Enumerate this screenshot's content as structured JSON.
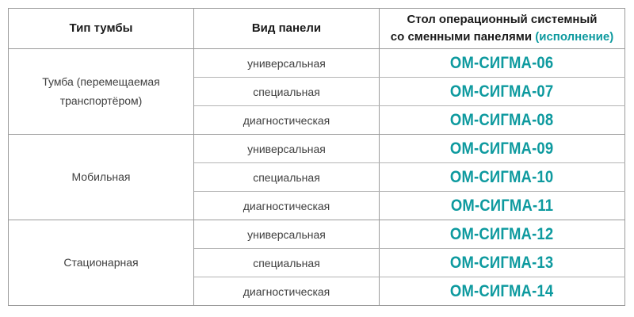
{
  "colors": {
    "accent_teal": "#0e9a9f",
    "grid_border": "#9b9b9b",
    "inner_row_border": "#b4b4b4",
    "header_text": "#1b1b1b",
    "body_text": "#404040"
  },
  "table": {
    "headers": {
      "cabinet_type": "Тип тумбы",
      "panel_type": "Вид панели",
      "model": {
        "line1": "Стол операционный системный",
        "line2": "со сменными панелями",
        "accent": "(исполнение)"
      }
    },
    "groups": [
      {
        "type": "Тумба (перемещаемая транспортёром)",
        "rows": [
          {
            "panel": "универсальная",
            "model": "ОМ-СИГМА-06"
          },
          {
            "panel": "специальная",
            "model": "ОМ-СИГМА-07"
          },
          {
            "panel": "диагностическая",
            "model": "ОМ-СИГМА-08"
          }
        ]
      },
      {
        "type": "Мобильная",
        "rows": [
          {
            "panel": "универсальная",
            "model": "ОМ-СИГМА-09"
          },
          {
            "panel": "специальная",
            "model": "ОМ-СИГМА-10"
          },
          {
            "panel": "диагностическая",
            "model": "ОМ-СИГМА-11"
          }
        ]
      },
      {
        "type": "Стационарная",
        "rows": [
          {
            "panel": "универсальная",
            "model": "ОМ-СИГМА-12"
          },
          {
            "panel": "специальная",
            "model": "ОМ-СИГМА-13"
          },
          {
            "panel": "диагностическая",
            "model": "ОМ-СИГМА-14"
          }
        ]
      }
    ]
  }
}
